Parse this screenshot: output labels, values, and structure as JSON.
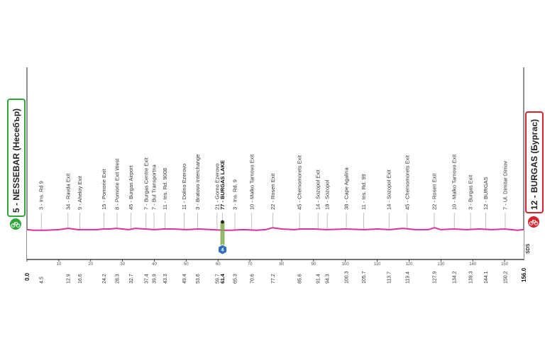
{
  "colors": {
    "profile_line": "#d6339b",
    "start_green": "#2fa63a",
    "finish_red": "#d9232d",
    "baseline": "#222222",
    "guide": "#999999",
    "intermediate_sprint": "#7ca84a",
    "km_marker_blue": "#2e6fb8"
  },
  "start": {
    "name": "5 - NESSEBAR (Несебър)",
    "km": "0.0",
    "icon": "bicycle-icon"
  },
  "finish": {
    "name": "12 - BURGAS (Бургас)",
    "km": "156.0",
    "icon": "bicycle-icon"
  },
  "logo_text": "SDS",
  "intermediate_marker": {
    "icon": "km-marker-icon",
    "label": "4"
  },
  "chart_data": {
    "type": "line",
    "title": "",
    "xlabel": "",
    "ylabel": "",
    "xlim": [
      0,
      156
    ],
    "x_ticks": [
      "0",
      "10",
      "20",
      "30",
      "40",
      "50",
      "60",
      "70",
      "80",
      "90",
      "100",
      "110",
      "120",
      "130",
      "140",
      "150"
    ],
    "profile": {
      "x": [
        0,
        2,
        6,
        10,
        13,
        16,
        18,
        22,
        24,
        26,
        28,
        30,
        32,
        34,
        37,
        40,
        43,
        46,
        50,
        54,
        58,
        61.4,
        64,
        68,
        72,
        75,
        77.2,
        80,
        84,
        86,
        90,
        94,
        100,
        106,
        110,
        114,
        118,
        122,
        126,
        128,
        130,
        134,
        138,
        142,
        146,
        150,
        154,
        156
      ],
      "y": [
        9,
        8,
        8,
        9,
        11,
        9,
        9,
        9,
        10,
        10,
        11,
        10,
        9,
        11,
        10,
        9,
        10,
        10,
        9,
        10,
        9,
        8,
        8,
        9,
        8,
        9,
        12,
        10,
        9,
        10,
        10,
        9,
        10,
        9,
        10,
        9,
        11,
        9,
        9,
        12,
        9,
        10,
        9,
        10,
        9,
        10,
        8,
        9
      ]
    },
    "points": [
      {
        "km": "4.5",
        "label": "3 - Ins. Rd 9"
      },
      {
        "km": "12.9",
        "label": "34 - Ravda Exit"
      },
      {
        "km": "16.6",
        "label": "9 - Aheloy Exit"
      },
      {
        "km": "24.2",
        "label": "15 - Pomorie Exit"
      },
      {
        "km": "28.3",
        "label": "8 - Pomorie Exit West"
      },
      {
        "km": "32.7",
        "label": "45 - Burgas Airport"
      },
      {
        "km": "37.4",
        "label": "7 - Burgas Centre Exit"
      },
      {
        "km": "39.9",
        "label": "7 - Bul Transportna"
      },
      {
        "km": "43.3",
        "label": "11 - Ins. Rd. 9008"
      },
      {
        "km": "49.4",
        "label": "11 - Dolino Ezerovo"
      },
      {
        "km": "53.6",
        "label": "3 - Bratovo Interchange"
      },
      {
        "km": "59.7",
        "label": "21 - Gorno Ezerovo"
      },
      {
        "km": "61.4",
        "label": "77 - BURGAS LAKE",
        "highlight": true
      },
      {
        "km": "65.3",
        "label": "3 - Ins. Rd. 9"
      },
      {
        "km": "70.6",
        "label": "10 - Malko Tarnovo Exit"
      },
      {
        "km": "77.2",
        "label": "22 - Rosen Exit"
      },
      {
        "km": "85.6",
        "label": "45 - Chernomorets Exit"
      },
      {
        "km": "91.4",
        "label": "14 - Sozopol Exit"
      },
      {
        "km": "94.3",
        "label": "18 - Sozopol"
      },
      {
        "km": "100.3",
        "label": "38 - Cape Agalina"
      },
      {
        "km": "105.7",
        "label": "11 - Ins. Rd. 99"
      },
      {
        "km": "113.7",
        "label": "14 - Sozopol Exit"
      },
      {
        "km": "119.4",
        "label": "45 - Chernomorets Exit"
      },
      {
        "km": "127.9",
        "label": "22 - Rosen Exit"
      },
      {
        "km": "134.2",
        "label": "10 - Malko Tarnovo Exit"
      },
      {
        "km": "139.3",
        "label": "3 - Burgas Exit"
      },
      {
        "km": "144.1",
        "label": "12 - BURGAS"
      },
      {
        "km": "150.2",
        "label": "7 - Ul. Dimitar Dimov"
      }
    ]
  }
}
